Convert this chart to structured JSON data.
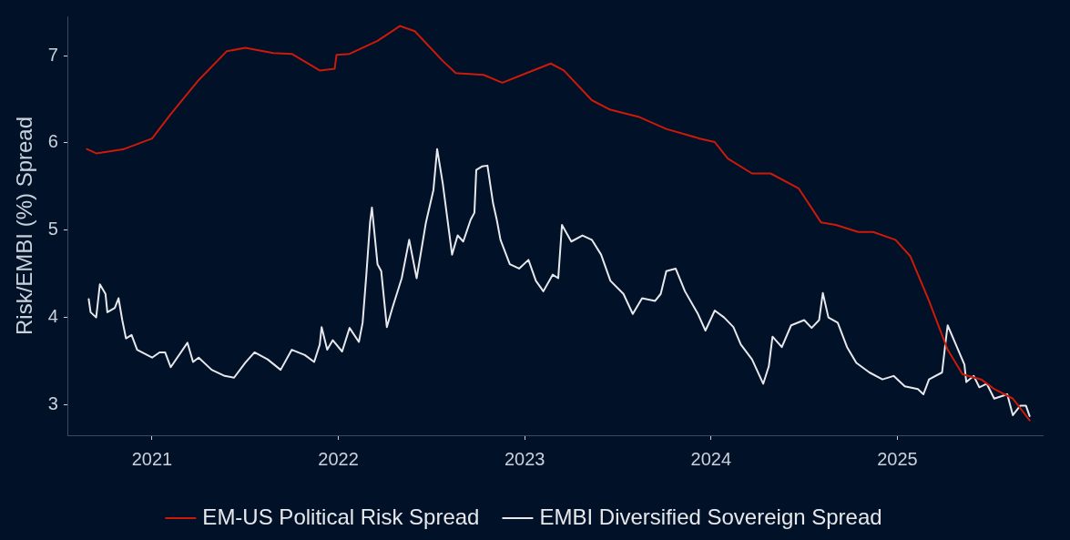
{
  "chart_data": {
    "type": "line",
    "ylabel": "Risk/EMBI (%) Spread",
    "xlim": [
      2020.55,
      2025.78
    ],
    "xticks": [
      2021,
      2022,
      2023,
      2024,
      2025
    ],
    "ylim": [
      2.65,
      7.45
    ],
    "yticks": [
      3,
      4,
      5,
      6,
      7
    ],
    "grid": false,
    "legend": "bottom",
    "marker": "none",
    "line_style": "solid",
    "series": [
      {
        "name": "EM-US Political Risk Spread",
        "color": "#cc1a0a",
        "x": [
          2020.65,
          2020.7,
          2020.85,
          2021.0,
          2021.1,
          2021.25,
          2021.4,
          2021.5,
          2021.65,
          2021.75,
          2021.9,
          2021.98,
          2021.99,
          2022.06,
          2022.21,
          2022.33,
          2022.41,
          2022.56,
          2022.63,
          2022.78,
          2022.88,
          2023.01,
          2023.14,
          2023.21,
          2023.36,
          2023.46,
          2023.61,
          2023.76,
          2023.94,
          2024.02,
          2024.09,
          2024.22,
          2024.32,
          2024.47,
          2024.59,
          2024.67,
          2024.79,
          2024.87,
          2024.99,
          2025.07,
          2025.17,
          2025.27,
          2025.35,
          2025.45,
          2025.52,
          2025.62,
          2025.71
        ],
        "values": [
          5.93,
          5.88,
          5.93,
          6.05,
          6.33,
          6.72,
          7.05,
          7.09,
          7.03,
          7.02,
          6.83,
          6.85,
          7.01,
          7.02,
          7.17,
          7.34,
          7.28,
          6.94,
          6.8,
          6.78,
          6.69,
          6.8,
          6.91,
          6.83,
          6.49,
          6.38,
          6.3,
          6.16,
          6.05,
          6.01,
          5.82,
          5.65,
          5.65,
          5.48,
          5.09,
          5.06,
          4.98,
          4.98,
          4.89,
          4.7,
          4.19,
          3.63,
          3.35,
          3.29,
          3.18,
          3.07,
          2.82
        ]
      },
      {
        "name": "EMBI Diversified Sovereign Spread",
        "color": "#e6e8ec",
        "x": [
          2020.66,
          2020.67,
          2020.7,
          2020.72,
          2020.75,
          2020.76,
          2020.8,
          2020.82,
          2020.84,
          2020.86,
          2020.89,
          2020.92,
          2021.0,
          2021.04,
          2021.07,
          2021.1,
          2021.19,
          2021.22,
          2021.25,
          2021.32,
          2021.39,
          2021.44,
          2021.5,
          2021.55,
          2021.62,
          2021.69,
          2021.75,
          2021.82,
          2021.87,
          2021.9,
          2021.91,
          2021.94,
          2021.97,
          2022.02,
          2022.06,
          2022.11,
          2022.13,
          2022.15,
          2022.17,
          2022.18,
          2022.21,
          2022.23,
          2022.26,
          2022.29,
          2022.34,
          2022.38,
          2022.42,
          2022.47,
          2022.51,
          2022.53,
          2022.56,
          2022.61,
          2022.64,
          2022.67,
          2022.71,
          2022.73,
          2022.74,
          2022.77,
          2022.8,
          2022.83,
          2022.85,
          2022.87,
          2022.92,
          2022.97,
          2023.02,
          2023.06,
          2023.1,
          2023.15,
          2023.18,
          2023.2,
          2023.25,
          2023.31,
          2023.36,
          2023.41,
          2023.46,
          2023.53,
          2023.58,
          2023.63,
          2023.7,
          2023.73,
          2023.76,
          2023.81,
          2023.86,
          2023.93,
          2023.97,
          2024.02,
          2024.07,
          2024.12,
          2024.16,
          2024.22,
          2024.28,
          2024.31,
          2024.33,
          2024.38,
          2024.43,
          2024.5,
          2024.54,
          2024.58,
          2024.6,
          2024.63,
          2024.68,
          2024.73,
          2024.78,
          2024.85,
          2024.92,
          2024.98,
          2025.04,
          2025.11,
          2025.14,
          2025.17,
          2025.24,
          2025.26,
          2025.27,
          2025.31,
          2025.36,
          2025.37,
          2025.41,
          2025.44,
          2025.48,
          2025.52,
          2025.59,
          2025.62,
          2025.66,
          2025.69,
          2025.71
        ],
        "values": [
          4.21,
          4.06,
          4.0,
          4.38,
          4.27,
          4.06,
          4.11,
          4.22,
          3.97,
          3.76,
          3.8,
          3.63,
          3.54,
          3.6,
          3.6,
          3.43,
          3.71,
          3.49,
          3.54,
          3.4,
          3.33,
          3.31,
          3.48,
          3.6,
          3.52,
          3.4,
          3.63,
          3.57,
          3.49,
          3.69,
          3.89,
          3.63,
          3.74,
          3.61,
          3.88,
          3.72,
          3.94,
          4.49,
          5.09,
          5.26,
          4.61,
          4.53,
          3.89,
          4.11,
          4.45,
          4.89,
          4.45,
          5.09,
          5.46,
          5.93,
          5.54,
          4.72,
          4.94,
          4.87,
          5.12,
          5.2,
          5.69,
          5.73,
          5.74,
          5.31,
          5.12,
          4.89,
          4.61,
          4.56,
          4.66,
          4.42,
          4.3,
          4.49,
          4.45,
          5.06,
          4.87,
          4.94,
          4.89,
          4.72,
          4.42,
          4.27,
          4.04,
          4.22,
          4.19,
          4.27,
          4.53,
          4.56,
          4.3,
          4.04,
          3.85,
          4.08,
          4.0,
          3.89,
          3.69,
          3.52,
          3.24,
          3.44,
          3.78,
          3.66,
          3.91,
          3.97,
          3.88,
          3.97,
          4.28,
          4.0,
          3.94,
          3.66,
          3.48,
          3.37,
          3.29,
          3.33,
          3.21,
          3.18,
          3.12,
          3.29,
          3.37,
          3.74,
          3.91,
          3.71,
          3.46,
          3.26,
          3.33,
          3.2,
          3.24,
          3.07,
          3.12,
          2.88,
          2.99,
          2.99,
          2.87
        ]
      }
    ]
  }
}
